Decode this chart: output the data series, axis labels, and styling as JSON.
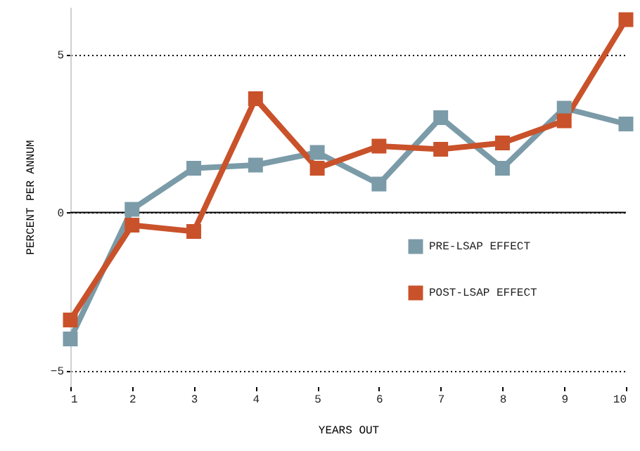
{
  "chart_data": {
    "type": "line",
    "xlabel": "YEARS OUT",
    "ylabel": "PERCENT PER ANNUM",
    "x": [
      1,
      2,
      3,
      4,
      5,
      6,
      7,
      8,
      9,
      10
    ],
    "series": [
      {
        "name": "PRE-LSAP EFFECT",
        "color": "#7b9ba8",
        "values": [
          -4.0,
          0.1,
          1.4,
          1.5,
          1.9,
          0.9,
          3.0,
          1.4,
          3.3,
          2.8
        ]
      },
      {
        "name": "POST-LSAP EFFECT",
        "color": "#c9522b",
        "values": [
          -3.4,
          -0.4,
          -0.6,
          3.6,
          1.4,
          2.1,
          2.0,
          2.2,
          2.9,
          6.1
        ]
      }
    ],
    "xlim": [
      1,
      10
    ],
    "xticks": [
      1,
      2,
      3,
      4,
      5,
      6,
      7,
      8,
      9,
      10
    ],
    "ylim": [
      -5.5,
      6.5
    ],
    "yticks": [
      -5,
      0,
      5
    ],
    "ref_lines": [
      {
        "axis": "y",
        "value": 0,
        "color": "#000000",
        "line_style": "solid"
      }
    ],
    "grid": "y",
    "legend": "right",
    "marker": "square",
    "line_style": "solid"
  }
}
